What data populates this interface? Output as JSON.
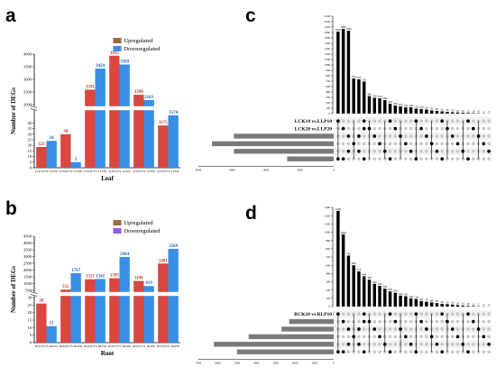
{
  "panels": {
    "a": "a",
    "b": "b",
    "c": "c",
    "d": "d"
  },
  "colors": {
    "up": "#d9473f",
    "down": "#3a8ee6",
    "up_legend": "#9c6b3d",
    "down_legend_a": "#3a8ee6",
    "down_legend_b": "#8f5fe6",
    "bar_black": "#000000",
    "dot_empty": "#c8c8c8",
    "setbar": "#7a7a7a"
  },
  "chart_data": [
    {
      "panel": "a",
      "type": "bar",
      "xlabel": "Leaf",
      "ylabel": "Number of DEGs",
      "axis_break": [
        50,
        2000
      ],
      "yticks": [
        "0",
        "5",
        "10",
        "15",
        "20",
        "25",
        "30",
        "35",
        "40",
        "2000",
        "2500",
        "3000",
        "3500",
        "4000"
      ],
      "legend": [
        "Upregulated",
        "Downregulated"
      ],
      "categories": [
        "LCK10 VS. LLP10",
        "LCK20 VS. LLP20",
        "LCK30 VS. LLP30",
        "LLP10 VS. LLP20",
        "LLP10 VS. LLP30",
        "LLP20 VS. LLP30"
      ],
      "series": [
        {
          "name": "Upregulated",
          "values": [
            323,
            30,
            2591,
            3935,
            2390,
            1175
          ]
        },
        {
          "name": "Downregulated",
          "values": [
            24,
            5,
            3424,
            3589,
            2183,
            1574
          ]
        }
      ]
    },
    {
      "panel": "b",
      "type": "bar",
      "xlabel": "Root",
      "ylabel": "Number of DEGs",
      "axis_break": [
        30,
        500
      ],
      "yticks": [
        "0",
        "5",
        "10",
        "15",
        "20",
        "25",
        "30",
        "500",
        "1000",
        "1500",
        "2000",
        "2500",
        "3000",
        "3500",
        "4000",
        "4500"
      ],
      "legend": [
        "Upregulated",
        "Downregulated"
      ],
      "categories": [
        "RCK10 VS. RLP10",
        "RCK20 VS. RLP20",
        "RCK30 VS. RLP30",
        "RLP10 VS. RLP20",
        "RLP10 VS. RLP30",
        "RLP20 VS. RLP30"
      ],
      "series": [
        {
          "name": "Upregulated",
          "values": [
            26,
            552,
            1321,
            1395,
            1190,
            2481
          ]
        },
        {
          "name": "Downregulated",
          "values": [
            11,
            1767,
            1341,
            2964,
            819,
            3569
          ]
        }
      ]
    },
    {
      "panel": "c",
      "type": "bar",
      "subtype": "upset",
      "sets": [
        "LCK10 vs.LLP10",
        "LCK20 vs.LLP20",
        "LCK30 vs.LLP30",
        "LLP10 vs.LLP20",
        "LLP10 vs.LLP30",
        "LLP20 vs.LLP30"
      ],
      "set_sizes": [
        0,
        0,
        5900,
        7200,
        5900,
        2750
      ],
      "set_size_ticks": [
        "8000",
        "6000",
        "4000",
        "2000",
        "0"
      ],
      "intersection_ticks": [
        "0",
        "120",
        "240",
        "360",
        "480",
        "600",
        "720",
        "840",
        "960",
        "1080",
        "1200",
        "1320",
        "1440",
        "1560",
        "1680",
        "1800",
        "1920",
        "2040",
        "2160"
      ],
      "intersections": [
        1820,
        1880,
        1840,
        780,
        760,
        710,
        390,
        350,
        340,
        300,
        220,
        180,
        160,
        140,
        140,
        110,
        100,
        90,
        70,
        60,
        50,
        40,
        30,
        25,
        20,
        15,
        10,
        8,
        5,
        3
      ]
    },
    {
      "panel": "d",
      "type": "bar",
      "subtype": "upset",
      "sets": [
        "RCK10 vs.RLP10",
        "RCK20 vs.RLP20",
        "RCK30 vs.RLP30",
        "RLP10 vs.RLP20",
        "RLP10 vs.RLP30",
        "RLP20 vs.RLP30"
      ],
      "set_sizes": [
        30,
        2300,
        2700,
        4400,
        6200,
        5000
      ],
      "set_size_ticks": [
        "7000",
        "6000",
        "5000",
        "4000",
        "3000",
        "2000",
        "1000",
        "0"
      ],
      "intersection_ticks": [
        "0",
        "120",
        "240",
        "360",
        "480",
        "600",
        "720",
        "840",
        "960",
        "1080",
        "1200",
        "1320",
        "1440"
      ],
      "intersections": [
        1390,
        1050,
        740,
        600,
        510,
        440,
        390,
        330,
        300,
        260,
        220,
        200,
        160,
        150,
        120,
        110,
        80,
        70,
        60,
        50,
        40,
        35,
        30,
        20,
        15,
        10,
        8,
        5,
        3,
        2
      ]
    }
  ]
}
